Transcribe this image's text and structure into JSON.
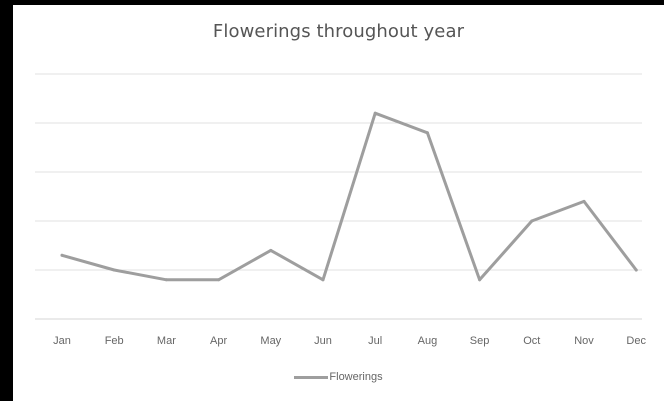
{
  "chart_data": {
    "type": "line",
    "title": "Flowerings throughout year",
    "categories": [
      "Jan",
      "Feb",
      "Mar",
      "Apr",
      "May",
      "Jun",
      "Jul",
      "Aug",
      "Sep",
      "Oct",
      "Nov",
      "Dec"
    ],
    "series": [
      {
        "name": "Flowerings",
        "values": [
          1.3,
          1.0,
          0.8,
          0.8,
          1.4,
          0.8,
          4.2,
          3.8,
          0.8,
          2.0,
          2.4,
          1.0
        ],
        "color": "#9e9e9e"
      }
    ],
    "ylim": [
      0,
      5
    ],
    "grid": true,
    "y_tick_labels_shown": false,
    "legend_position": "bottom"
  }
}
